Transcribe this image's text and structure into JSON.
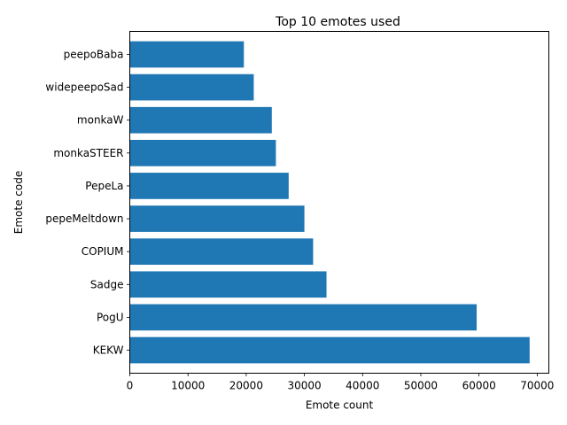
{
  "chart_data": {
    "type": "bar",
    "orientation": "horizontal",
    "title": "Top 10 emotes used",
    "xlabel": "Emote count",
    "ylabel": "Emote code",
    "categories": [
      "KEKW",
      "PogU",
      "Sadge",
      "COPIUM",
      "pepeMeltdown",
      "PepeLa",
      "monkaSTEER",
      "monkaW",
      "widepeepoSad",
      "peepoBaba"
    ],
    "values": [
      68700,
      59600,
      33800,
      31500,
      30000,
      27300,
      25100,
      24400,
      21300,
      19600
    ],
    "xlim": [
      0,
      72000
    ],
    "xticks": [
      0,
      10000,
      20000,
      30000,
      40000,
      50000,
      60000,
      70000
    ],
    "bar_color": "#1f77b4",
    "grid": false
  }
}
